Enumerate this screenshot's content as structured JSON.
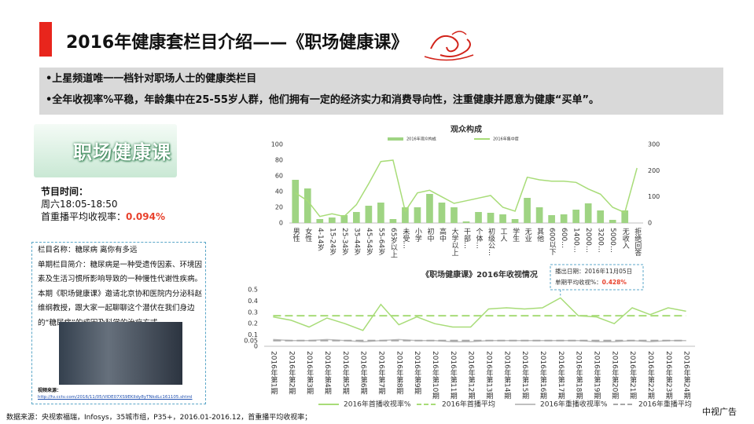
{
  "header": {
    "title": "2016年健康套栏目介绍——《职场健康课》"
  },
  "bullets": [
    "•上星频道唯一一档针对职场人士的健康类栏目",
    "•全年收视率%平稳，年龄集中在25-55岁人群，他们拥有一定的经济实力和消费导向性，注重健康并愿意为健康“买单”。"
  ],
  "program": {
    "logo": "职场健康课",
    "time_label": "节目时间：",
    "time": "周六18:05-18:50",
    "rating_label": "首重播平均收视率：",
    "rating": "0.094%"
  },
  "episode": {
    "name": "栏目名称：糖尿病 离你有多远",
    "intro": "单期栏目简介：糖尿病是一种受遗传因素、环境因素及生活习惯所影响导致的一种慢性代谢性疾病。",
    "detail": "本期《职场健康课》邀请北京协和医院内分泌科赵维纲教授，跟大家一起聊聊这个潜伏在我们身边的“糖尿病”的成因及科学的治疗方式。",
    "source_label": "视频来源：",
    "source_url": "http://tv.cctv.com/2016/11/05/VIDE07XS9EKIldy8yTNkdLc161105.shtml"
  },
  "footer": {
    "source": "数据来源：央视索福瑞，Infosys，35城市组，P35+，2016.01-2016.12，首重播平均收视率；",
    "brand": "中视广告"
  },
  "chart_data": [
    {
      "type": "bar",
      "title": "观众构成",
      "categories": [
        "男性",
        "女性",
        "4-14岁",
        "15-24岁",
        "25-34岁",
        "35-44岁",
        "45-54岁",
        "55-64岁",
        "65岁以上",
        "未受…",
        "小学",
        "初中",
        "高中",
        "大学以上",
        "干部…",
        "个体…",
        "初级公…",
        "工人",
        "学生",
        "无业",
        "其他",
        "600以下",
        "600…",
        "1400…",
        "2000…",
        "3200…",
        "5000…",
        "无收入",
        "拒绝回答"
      ],
      "series": [
        {
          "name": "2016年观众构成",
          "type": "bar",
          "color": "#9fd483",
          "values": [
            55,
            44,
            5,
            7,
            10,
            14,
            22,
            26,
            5,
            20,
            20,
            37,
            26,
            20,
            2,
            14,
            13,
            11,
            5,
            32,
            20,
            10,
            11,
            17,
            25,
            16,
            4,
            16,
            null
          ]
        },
        {
          "name": "2016年集中度",
          "type": "line",
          "axis": "y2",
          "color": "#a8dc78",
          "values": [
            115,
            85,
            25,
            35,
            25,
            70,
            150,
            235,
            240,
            45,
            115,
            125,
            100,
            75,
            85,
            95,
            105,
            60,
            45,
            175,
            165,
            160,
            160,
            155,
            130,
            110,
            60,
            40,
            210
          ]
        }
      ],
      "ylim": [
        0,
        100
      ],
      "yticks": [
        0,
        20,
        40,
        60,
        80,
        100
      ],
      "y2lim": [
        0,
        300
      ],
      "y2ticks": [
        0,
        100,
        200,
        300
      ],
      "grid": false,
      "legend": "top"
    },
    {
      "type": "line",
      "title": "《职场健康课》2016年收视情况",
      "categories": [
        "2016年第1期",
        "2016年第2期",
        "2016年第3期",
        "2016年第4期",
        "2016年第5期",
        "2016年第6期",
        "2016年第7期",
        "2016年第8期",
        "2016年第9期",
        "2016年第10期",
        "2016年第11期",
        "2016年第12期",
        "2016年第13期",
        "2016年第14期",
        "2016年第15期",
        "2016年第16期",
        "2016年第17期",
        "2016年第18期",
        "2016年第19期",
        "2016年第20期",
        "2016年第21期",
        "2016年第22期",
        "2016年第23期",
        "2016年第24期"
      ],
      "series": [
        {
          "name": "2016年首播收视率%",
          "color": "#a8dc78",
          "dash": false,
          "values": [
            0.26,
            0.23,
            0.17,
            0.25,
            0.2,
            0.14,
            0.37,
            0.19,
            0.26,
            0.2,
            0.17,
            0.17,
            0.33,
            0.34,
            0.33,
            0.34,
            0.428,
            0.27,
            0.26,
            0.2,
            0.34,
            0.28,
            0.34,
            0.31
          ]
        },
        {
          "name": "2016年首播平均",
          "color": "#a8dc78",
          "dash": true,
          "values": [
            0.27,
            0.27,
            0.27,
            0.27,
            0.27,
            0.27,
            0.27,
            0.27,
            0.27,
            0.27,
            0.27,
            0.27,
            0.27,
            0.27,
            0.27,
            0.27,
            0.27,
            0.27,
            0.27,
            0.27,
            0.27,
            0.27,
            0.27,
            0.27
          ]
        },
        {
          "name": "2016年重播收视率%",
          "color": "#bfbfbf",
          "dash": false,
          "values": [
            0.06,
            0.05,
            0.05,
            0.06,
            0.05,
            0.04,
            0.05,
            0.06,
            0.05,
            0.05,
            0.04,
            0.04,
            0.05,
            0.05,
            0.05,
            0.05,
            0.05,
            0.05,
            0.04,
            0.04,
            0.05,
            0.04,
            0.05,
            0.05
          ]
        },
        {
          "name": "2016年重播平均",
          "color": "#a6a6a6",
          "dash": true,
          "values": [
            0.05,
            0.05,
            0.05,
            0.05,
            0.05,
            0.05,
            0.05,
            0.05,
            0.05,
            0.05,
            0.05,
            0.05,
            0.05,
            0.05,
            0.05,
            0.05,
            0.05,
            0.05,
            0.05,
            0.05,
            0.05,
            0.05,
            0.05,
            0.05
          ]
        }
      ],
      "ylim": [
        0,
        0.5
      ],
      "yticks": [
        0,
        0.05,
        0.1,
        0.2,
        0.3,
        0.4,
        0.5
      ],
      "grid": false,
      "legend": "bottom",
      "annotations": [
        "播出日期：2016年11月05日",
        "单期平均收视%：",
        "0.428%"
      ]
    }
  ]
}
